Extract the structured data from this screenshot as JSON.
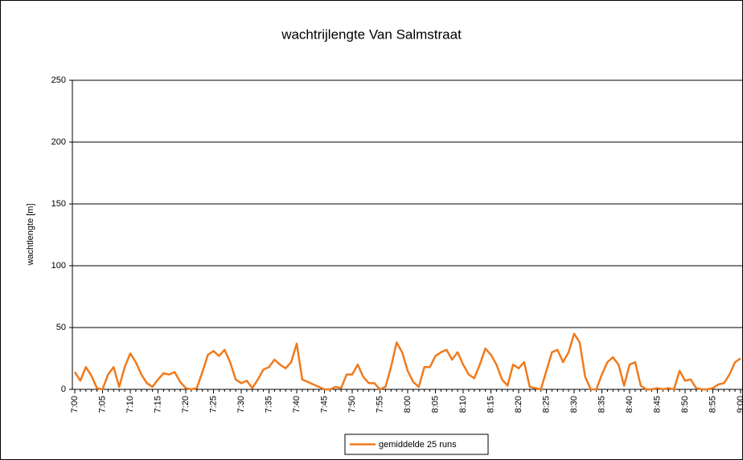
{
  "chart_data": {
    "type": "line",
    "title": "wachtrijlengte Van Salmstraat",
    "ylabel": "wachtlengte [m]",
    "categories": [
      "7:00",
      null,
      null,
      null,
      null,
      "7:05",
      null,
      null,
      null,
      null,
      "7:10",
      null,
      null,
      null,
      null,
      "7:15",
      null,
      null,
      null,
      null,
      "7:20",
      null,
      null,
      null,
      null,
      "7:25",
      null,
      null,
      null,
      null,
      "7:30",
      null,
      null,
      null,
      null,
      "7:35",
      null,
      null,
      null,
      null,
      "7:40",
      null,
      null,
      null,
      null,
      "7:45",
      null,
      null,
      null,
      null,
      "7:50",
      null,
      null,
      null,
      null,
      "7:55",
      null,
      null,
      null,
      null,
      "8:00",
      null,
      null,
      null,
      null,
      "8:05",
      null,
      null,
      null,
      null,
      "8:10",
      null,
      null,
      null,
      null,
      "8:15",
      null,
      null,
      null,
      null,
      "8:20",
      null,
      null,
      null,
      null,
      "8:25",
      null,
      null,
      null,
      null,
      "8:30",
      null,
      null,
      null,
      null,
      "8:35",
      null,
      null,
      null,
      null,
      "8:40",
      null,
      null,
      null,
      null,
      "8:45",
      null,
      null,
      null,
      null,
      "8:50",
      null,
      null,
      null,
      null,
      "8:55",
      null,
      null,
      null,
      null,
      "9:00"
    ],
    "series": [
      {
        "name": "gemiddelde 25 runs",
        "color": "#f07a1c",
        "values": [
          14,
          7,
          18,
          11,
          1,
          0,
          12,
          18,
          2,
          18,
          29,
          22,
          12,
          5,
          2,
          8,
          13,
          12,
          14,
          6,
          1,
          0,
          1,
          14,
          28,
          31,
          27,
          32,
          22,
          8,
          5,
          7,
          1,
          8,
          16,
          18,
          24,
          20,
          17,
          22,
          37,
          8,
          6,
          4,
          2,
          0,
          0,
          2,
          1,
          12,
          12,
          20,
          10,
          5,
          5,
          0,
          2,
          18,
          38,
          30,
          15,
          6,
          2,
          18,
          18,
          27,
          30,
          32,
          24,
          30,
          20,
          12,
          9,
          20,
          33,
          28,
          20,
          8,
          3,
          20,
          17,
          22,
          2,
          1,
          0,
          15,
          30,
          32,
          22,
          30,
          45,
          38,
          10,
          0,
          0,
          12,
          22,
          26,
          20,
          3,
          20,
          22,
          3,
          0,
          0,
          1,
          0,
          1,
          0,
          15,
          7,
          8,
          1,
          0,
          0,
          1,
          4,
          5,
          12,
          22,
          25
        ]
      }
    ],
    "ylim": [
      0,
      250
    ],
    "yticks": [
      0,
      50,
      100,
      150,
      200,
      250
    ],
    "grid": true,
    "legend": "bottom"
  }
}
